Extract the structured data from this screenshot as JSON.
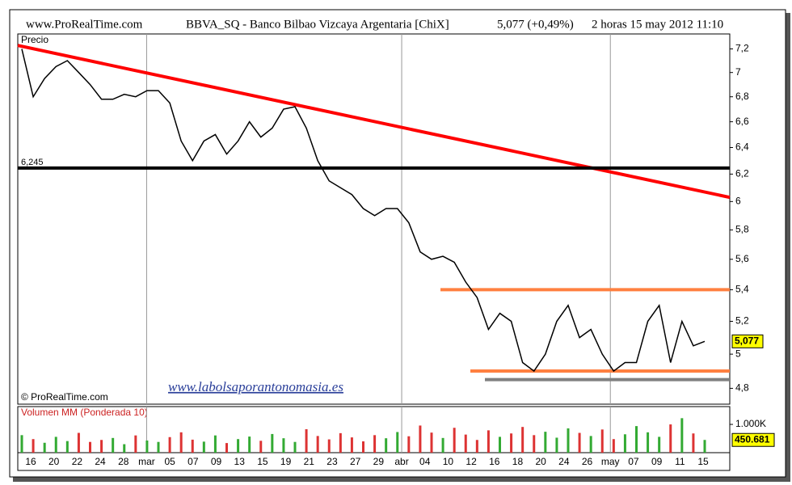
{
  "header": {
    "site": "www.ProRealTime.com",
    "instrument": "BBVA_SQ - Banco Bilbao Vizcaya Argentaria  [ChiX]",
    "quote": "5,077 (+0,49%)",
    "period": "2 horas  15 may 2012 11:10"
  },
  "chart_data": [
    {
      "type": "line",
      "title": "Precio",
      "color": "#000000",
      "log_scale": true,
      "values": [
        7.2,
        6.8,
        6.95,
        7.05,
        7.1,
        7.0,
        6.9,
        6.78,
        6.78,
        6.82,
        6.8,
        6.85,
        6.85,
        6.75,
        6.45,
        6.3,
        6.45,
        6.5,
        6.35,
        6.45,
        6.6,
        6.48,
        6.55,
        6.7,
        6.72,
        6.55,
        6.3,
        6.15,
        6.1,
        6.05,
        5.95,
        5.9,
        5.95,
        5.95,
        5.85,
        5.65,
        5.6,
        5.62,
        5.58,
        5.45,
        5.35,
        5.15,
        5.25,
        5.2,
        4.95,
        4.9,
        5.0,
        5.2,
        5.3,
        5.1,
        5.15,
        5.0,
        4.9,
        4.95,
        4.95,
        5.2,
        5.3,
        4.95,
        5.2,
        5.05,
        5.077
      ],
      "ylim": [
        4.71,
        7.33
      ],
      "yticks": [
        {
          "value": 4.8,
          "label": "4,8"
        },
        5,
        {
          "value": 5.2,
          "label": "5,2"
        },
        {
          "value": 5.4,
          "label": "5,4"
        },
        {
          "value": 5.6,
          "label": "5,6"
        },
        {
          "value": 5.8,
          "label": "5,8"
        },
        6,
        {
          "value": 6.2,
          "label": "6,2"
        },
        {
          "value": 6.4,
          "label": "6,4"
        },
        {
          "value": 6.6,
          "label": "6,6"
        },
        {
          "value": 6.8,
          "label": "6,8"
        },
        7,
        {
          "value": 7.2,
          "label": "7,2"
        }
      ],
      "last_price": {
        "value": 5.077,
        "label": "5,077"
      },
      "trendlines": [
        {
          "color": "#ff0000",
          "values": [
            7.23,
            6.03
          ]
        },
        {
          "color": "#000000",
          "values": [
            6.245,
            6.245
          ],
          "label": "6,245"
        },
        {
          "color": "#ff8040",
          "values": [
            5.4,
            5.4
          ]
        },
        {
          "color": "#ff8040",
          "values": [
            4.9,
            4.9
          ]
        },
        {
          "color": "#808080",
          "values": [
            4.85,
            4.85
          ]
        }
      ],
      "x_labels": [
        "16",
        "20",
        "22",
        "24",
        "28",
        "mar",
        "05",
        "07",
        "09",
        "13",
        "15",
        "19",
        "21",
        "23",
        "27",
        "29",
        "abr",
        "04",
        "10",
        "12",
        "16",
        "18",
        "20",
        "24",
        "26",
        "may",
        "07",
        "09",
        "11",
        "15"
      ],
      "copyright": "© ProRealTime.com",
      "watermark": "www.labolsaporantonomasia.es"
    },
    {
      "type": "bar",
      "title": "Volumen MM (Ponderada 10)",
      "up_color": "#33aa33",
      "down_color": "#dd3333",
      "values": [
        620000,
        480000,
        350000,
        560000,
        410000,
        700000,
        380000,
        450000,
        520000,
        300000,
        610000,
        430000,
        380000,
        550000,
        720000,
        460000,
        390000,
        610000,
        340000,
        480000,
        570000,
        420000,
        660000,
        510000,
        380000,
        830000,
        590000,
        470000,
        690000,
        540000,
        400000,
        620000,
        510000,
        730000,
        580000,
        960000,
        710000,
        520000,
        880000,
        640000,
        450000,
        790000,
        560000,
        680000,
        910000,
        620000,
        740000,
        530000,
        860000,
        700000,
        590000,
        820000,
        480000,
        650000,
        940000,
        720000,
        560000,
        1000000,
        1220000,
        680000,
        450681
      ],
      "ylim": [
        0,
        1630000
      ],
      "yticks": [
        {
          "value": 1000000,
          "label": "1.000K"
        }
      ],
      "current": {
        "value": 450681,
        "label": "450.681"
      }
    }
  ]
}
